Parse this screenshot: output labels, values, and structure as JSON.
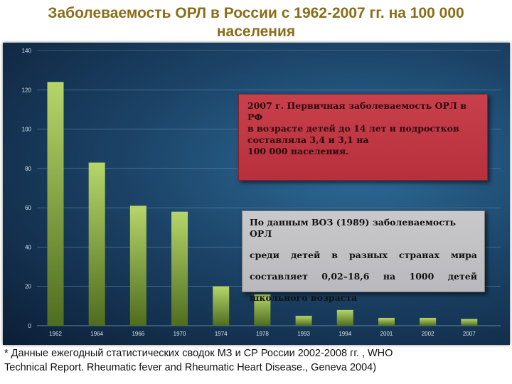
{
  "page": {
    "title_line1": "Заболеваемость ОРЛ в России с 1962-2007 гг. на 100 000",
    "title_line2": "населения"
  },
  "box_red": {
    "lines": [
      "2007 г. Первичная заболеваемость ОРЛ в РФ",
      "в возрасте  детей до 14 лет и подростков",
      "составляла 3,4 и 3,1 на",
      "100 000 населения."
    ]
  },
  "box_gray": {
    "line1": "По данным ВОЗ (1989) заболеваемость ОРЛ",
    "line2_words": [
      "среди",
      "детей",
      "в",
      "разных",
      "странах",
      "мира"
    ],
    "line3_words": [
      "составляет",
      "0,02–18,6",
      "на",
      "1000",
      "детей"
    ],
    "line4": "школьного возраста"
  },
  "footnote": {
    "line1": "* Данные ежегодный статистических сводок МЗ и СР России 2002-2008 гг. , WHO",
    "line2": "Technical Report. Rheumatic fever and Rheumatic Heart Disease., Geneva 2004)"
  },
  "colors": {
    "bar_top": "#b6d66a",
    "bar_bottom": "#4f6d1f",
    "grid": "#5f86a8",
    "tick_text": "#d7e1ea"
  },
  "chart_data": {
    "type": "bar",
    "title": "Заболеваемость ОРЛ в России с 1962-2007 гг. на 100 000 населения",
    "categories": [
      "1962",
      "1964",
      "1966",
      "1970",
      "1974",
      "1978",
      "1993",
      "1994",
      "2001",
      "2002",
      "2007"
    ],
    "values": [
      124,
      83,
      61,
      58,
      20,
      16,
      5,
      8,
      4,
      4,
      3.4
    ],
    "ylim": [
      0,
      140
    ],
    "yticks": [
      0,
      20,
      40,
      60,
      80,
      100,
      120,
      140
    ],
    "xlabel": "",
    "ylabel": "",
    "grid": true
  }
}
